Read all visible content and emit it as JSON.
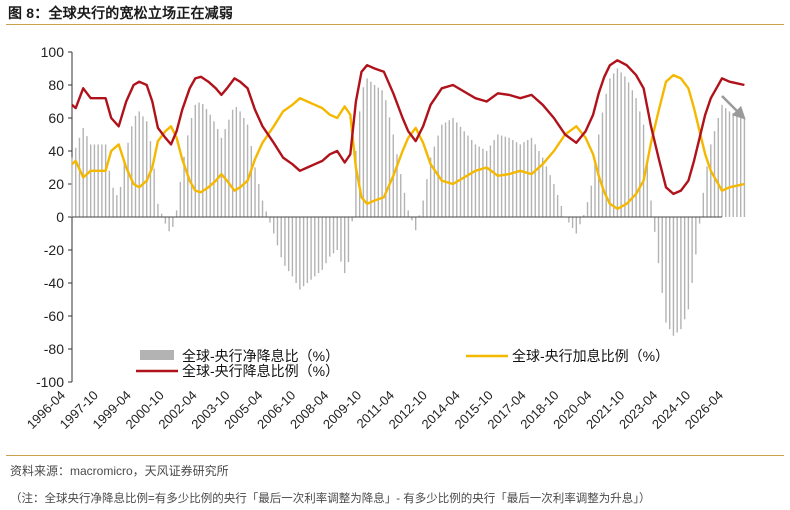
{
  "figure": {
    "title": "图 8：全球央行的宽松立场正在减弱",
    "source": "资料来源：macromicro，天风证券研究所",
    "note": "（注：全球央行净降息比例=有多少比例的央行「最后一次利率调整为降息」- 有多少比例的央行「最后一次利率调整为升息」）"
  },
  "colors": {
    "net_cut_bars": "#b3b3b3",
    "cut_ratio_line": "#b0121b",
    "hike_ratio_line": "#f5b800",
    "trend_arrow": "#9a9a9a",
    "accent_rule": "#c9a24a"
  },
  "chart_data": {
    "type": "bar+line",
    "x_unit": "month",
    "x_start": "1996-04",
    "x_end": "2025-04",
    "ylim": [
      -100,
      100
    ],
    "yticks": [
      100,
      80,
      60,
      40,
      20,
      0,
      -20,
      -40,
      -60,
      -80,
      -100
    ],
    "xtick_labels": [
      "1996-04",
      "1997-10",
      "1999-04",
      "2000-10",
      "2002-04",
      "2003-10",
      "2005-04",
      "2006-10",
      "2008-04",
      "2009-10",
      "2011-04",
      "2012-10",
      "2014-04",
      "2015-10",
      "2017-04",
      "2018-10",
      "2020-04",
      "2021-10",
      "2023-04",
      "2024-10",
      "2026-04"
    ],
    "legend": [
      {
        "key": "net_cut",
        "label": "全球-央行净降息比（%）",
        "style": "bar"
      },
      {
        "key": "hike_ratio",
        "label": "全球-央行加息比例（%）",
        "style": "line"
      },
      {
        "key": "cut_ratio",
        "label": "全球-央行降息比例（%）",
        "style": "line"
      }
    ],
    "annotation": "downward-trend-arrow",
    "series": [
      {
        "key": "cut_ratio",
        "name": "全球-央行降息比例（%）",
        "points": [
          [
            "1996-04",
            68
          ],
          [
            "1996-06",
            66
          ],
          [
            "1996-10",
            78
          ],
          [
            "1997-02",
            72
          ],
          [
            "1997-10",
            72
          ],
          [
            "1998-01",
            60
          ],
          [
            "1998-05",
            55
          ],
          [
            "1998-09",
            70
          ],
          [
            "1999-01",
            80
          ],
          [
            "1999-04",
            82
          ],
          [
            "1999-08",
            80
          ],
          [
            "1999-11",
            70
          ],
          [
            "2000-02",
            54
          ],
          [
            "2000-06",
            48
          ],
          [
            "2000-09",
            44
          ],
          [
            "2000-12",
            52
          ],
          [
            "2001-03",
            65
          ],
          [
            "2001-07",
            78
          ],
          [
            "2001-10",
            84
          ],
          [
            "2002-01",
            85
          ],
          [
            "2002-05",
            82
          ],
          [
            "2002-09",
            78
          ],
          [
            "2002-12",
            74
          ],
          [
            "2003-03",
            78
          ],
          [
            "2003-07",
            84
          ],
          [
            "2003-10",
            82
          ],
          [
            "2004-02",
            78
          ],
          [
            "2004-06",
            65
          ],
          [
            "2004-10",
            55
          ],
          [
            "2005-04",
            45
          ],
          [
            "2005-09",
            36
          ],
          [
            "2006-02",
            32
          ],
          [
            "2006-06",
            28
          ],
          [
            "2006-10",
            30
          ],
          [
            "2007-02",
            32
          ],
          [
            "2007-06",
            34
          ],
          [
            "2007-10",
            38
          ],
          [
            "2008-02",
            40
          ],
          [
            "2008-06",
            33
          ],
          [
            "2008-09",
            38
          ],
          [
            "2008-12",
            70
          ],
          [
            "2009-03",
            88
          ],
          [
            "2009-06",
            92
          ],
          [
            "2009-10",
            90
          ],
          [
            "2010-03",
            88
          ],
          [
            "2010-08",
            75
          ],
          [
            "2011-01",
            60
          ],
          [
            "2011-04",
            52
          ],
          [
            "2011-08",
            46
          ],
          [
            "2011-12",
            55
          ],
          [
            "2012-04",
            68
          ],
          [
            "2012-10",
            78
          ],
          [
            "2013-04",
            80
          ],
          [
            "2013-10",
            76
          ],
          [
            "2014-04",
            72
          ],
          [
            "2014-10",
            70
          ],
          [
            "2015-04",
            75
          ],
          [
            "2015-10",
            74
          ],
          [
            "2016-04",
            72
          ],
          [
            "2016-10",
            74
          ],
          [
            "2017-04",
            68
          ],
          [
            "2017-10",
            60
          ],
          [
            "2018-04",
            50
          ],
          [
            "2018-10",
            45
          ],
          [
            "2019-03",
            52
          ],
          [
            "2019-07",
            62
          ],
          [
            "2019-10",
            75
          ],
          [
            "2020-01",
            85
          ],
          [
            "2020-04",
            92
          ],
          [
            "2020-08",
            95
          ],
          [
            "2021-01",
            92
          ],
          [
            "2021-06",
            86
          ],
          [
            "2021-10",
            78
          ],
          [
            "2022-02",
            55
          ],
          [
            "2022-06",
            36
          ],
          [
            "2022-10",
            18
          ],
          [
            "2023-02",
            14
          ],
          [
            "2023-06",
            16
          ],
          [
            "2023-10",
            22
          ],
          [
            "2024-01",
            34
          ],
          [
            "2024-04",
            48
          ],
          [
            "2024-07",
            62
          ],
          [
            "2024-10",
            72
          ],
          [
            "2025-01",
            78
          ],
          [
            "2025-04",
            84
          ],
          [
            "2025-08",
            82
          ],
          [
            "2025-12",
            81
          ],
          [
            "2026-04",
            80
          ]
        ]
      },
      {
        "key": "hike_ratio",
        "name": "全球-央行加息比例（%）",
        "points": [
          [
            "1996-04",
            32
          ],
          [
            "1996-06",
            34
          ],
          [
            "1996-10",
            24
          ],
          [
            "1997-02",
            28
          ],
          [
            "1997-10",
            28
          ],
          [
            "1998-01",
            40
          ],
          [
            "1998-05",
            44
          ],
          [
            "1998-09",
            30
          ],
          [
            "1999-01",
            20
          ],
          [
            "1999-04",
            18
          ],
          [
            "1999-08",
            22
          ],
          [
            "1999-11",
            30
          ],
          [
            "2000-02",
            46
          ],
          [
            "2000-06",
            52
          ],
          [
            "2000-09",
            55
          ],
          [
            "2000-12",
            48
          ],
          [
            "2001-03",
            35
          ],
          [
            "2001-07",
            22
          ],
          [
            "2001-10",
            16
          ],
          [
            "2002-01",
            15
          ],
          [
            "2002-05",
            18
          ],
          [
            "2002-09",
            22
          ],
          [
            "2002-12",
            26
          ],
          [
            "2003-03",
            22
          ],
          [
            "2003-07",
            16
          ],
          [
            "2003-10",
            18
          ],
          [
            "2004-02",
            22
          ],
          [
            "2004-06",
            35
          ],
          [
            "2004-10",
            45
          ],
          [
            "2005-04",
            55
          ],
          [
            "2005-09",
            64
          ],
          [
            "2006-02",
            68
          ],
          [
            "2006-06",
            72
          ],
          [
            "2006-10",
            70
          ],
          [
            "2007-02",
            68
          ],
          [
            "2007-06",
            66
          ],
          [
            "2007-10",
            62
          ],
          [
            "2008-02",
            60
          ],
          [
            "2008-06",
            67
          ],
          [
            "2008-09",
            62
          ],
          [
            "2008-12",
            30
          ],
          [
            "2009-03",
            12
          ],
          [
            "2009-06",
            8
          ],
          [
            "2009-10",
            10
          ],
          [
            "2010-03",
            12
          ],
          [
            "2010-08",
            25
          ],
          [
            "2011-01",
            40
          ],
          [
            "2011-04",
            48
          ],
          [
            "2011-08",
            54
          ],
          [
            "2011-12",
            45
          ],
          [
            "2012-04",
            32
          ],
          [
            "2012-10",
            22
          ],
          [
            "2013-04",
            20
          ],
          [
            "2013-10",
            24
          ],
          [
            "2014-04",
            28
          ],
          [
            "2014-10",
            30
          ],
          [
            "2015-04",
            25
          ],
          [
            "2015-10",
            26
          ],
          [
            "2016-04",
            28
          ],
          [
            "2016-10",
            26
          ],
          [
            "2017-04",
            32
          ],
          [
            "2017-10",
            40
          ],
          [
            "2018-04",
            50
          ],
          [
            "2018-10",
            55
          ],
          [
            "2019-03",
            48
          ],
          [
            "2019-07",
            38
          ],
          [
            "2019-10",
            25
          ],
          [
            "2020-01",
            15
          ],
          [
            "2020-04",
            8
          ],
          [
            "2020-08",
            5
          ],
          [
            "2021-01",
            8
          ],
          [
            "2021-06",
            14
          ],
          [
            "2021-10",
            22
          ],
          [
            "2022-02",
            45
          ],
          [
            "2022-06",
            64
          ],
          [
            "2022-10",
            82
          ],
          [
            "2023-02",
            86
          ],
          [
            "2023-06",
            84
          ],
          [
            "2023-10",
            78
          ],
          [
            "2024-01",
            66
          ],
          [
            "2024-04",
            52
          ],
          [
            "2024-07",
            38
          ],
          [
            "2024-10",
            28
          ],
          [
            "2025-01",
            22
          ],
          [
            "2025-04",
            16
          ],
          [
            "2025-08",
            18
          ],
          [
            "2025-12",
            19
          ],
          [
            "2026-04",
            20
          ]
        ]
      },
      {
        "key": "net_cut",
        "name": "全球-央行净降息比（%）",
        "points": [
          [
            "1996-04",
            36
          ],
          [
            "1996-10",
            54
          ],
          [
            "1997-02",
            44
          ],
          [
            "1997-10",
            44
          ],
          [
            "1998-01",
            20
          ],
          [
            "1998-05",
            11
          ],
          [
            "1998-09",
            40
          ],
          [
            "1999-01",
            60
          ],
          [
            "1999-04",
            64
          ],
          [
            "1999-08",
            58
          ],
          [
            "1999-11",
            40
          ],
          [
            "2000-02",
            8
          ],
          [
            "2000-06",
            -4
          ],
          [
            "2000-09",
            -11
          ],
          [
            "2000-12",
            4
          ],
          [
            "2001-03",
            30
          ],
          [
            "2001-07",
            56
          ],
          [
            "2001-10",
            68
          ],
          [
            "2002-01",
            70
          ],
          [
            "2002-05",
            64
          ],
          [
            "2002-09",
            56
          ],
          [
            "2002-12",
            48
          ],
          [
            "2003-03",
            56
          ],
          [
            "2003-07",
            68
          ],
          [
            "2003-10",
            64
          ],
          [
            "2004-02",
            56
          ],
          [
            "2004-06",
            30
          ],
          [
            "2004-10",
            10
          ],
          [
            "2005-04",
            -10
          ],
          [
            "2005-09",
            -28
          ],
          [
            "2006-02",
            -36
          ],
          [
            "2006-06",
            -44
          ],
          [
            "2006-10",
            -40
          ],
          [
            "2007-02",
            -36
          ],
          [
            "2007-06",
            -32
          ],
          [
            "2007-10",
            -24
          ],
          [
            "2008-02",
            -20
          ],
          [
            "2008-06",
            -34
          ],
          [
            "2008-09",
            -24
          ],
          [
            "2008-12",
            40
          ],
          [
            "2009-03",
            76
          ],
          [
            "2009-06",
            84
          ],
          [
            "2009-10",
            80
          ],
          [
            "2010-03",
            76
          ],
          [
            "2010-08",
            50
          ],
          [
            "2011-01",
            20
          ],
          [
            "2011-04",
            4
          ],
          [
            "2011-08",
            -8
          ],
          [
            "2011-12",
            10
          ],
          [
            "2012-04",
            36
          ],
          [
            "2012-10",
            56
          ],
          [
            "2013-04",
            60
          ],
          [
            "2013-10",
            52
          ],
          [
            "2014-04",
            44
          ],
          [
            "2014-10",
            40
          ],
          [
            "2015-04",
            50
          ],
          [
            "2015-10",
            48
          ],
          [
            "2016-04",
            44
          ],
          [
            "2016-10",
            48
          ],
          [
            "2017-04",
            36
          ],
          [
            "2017-10",
            20
          ],
          [
            "2018-04",
            0
          ],
          [
            "2018-10",
            -10
          ],
          [
            "2019-03",
            4
          ],
          [
            "2019-07",
            24
          ],
          [
            "2019-10",
            50
          ],
          [
            "2020-01",
            70
          ],
          [
            "2020-04",
            84
          ],
          [
            "2020-08",
            90
          ],
          [
            "2021-01",
            84
          ],
          [
            "2021-06",
            72
          ],
          [
            "2021-10",
            56
          ],
          [
            "2022-02",
            10
          ],
          [
            "2022-06",
            -28
          ],
          [
            "2022-10",
            -64
          ],
          [
            "2023-02",
            -72
          ],
          [
            "2023-06",
            -68
          ],
          [
            "2023-10",
            -56
          ],
          [
            "2024-01",
            -32
          ],
          [
            "2024-04",
            -4
          ],
          [
            "2024-07",
            24
          ],
          [
            "2024-10",
            44
          ],
          [
            "2025-01",
            56
          ],
          [
            "2025-04",
            68
          ],
          [
            "2025-08",
            64
          ],
          [
            "2025-12",
            62
          ],
          [
            "2026-04",
            60
          ]
        ]
      }
    ]
  }
}
